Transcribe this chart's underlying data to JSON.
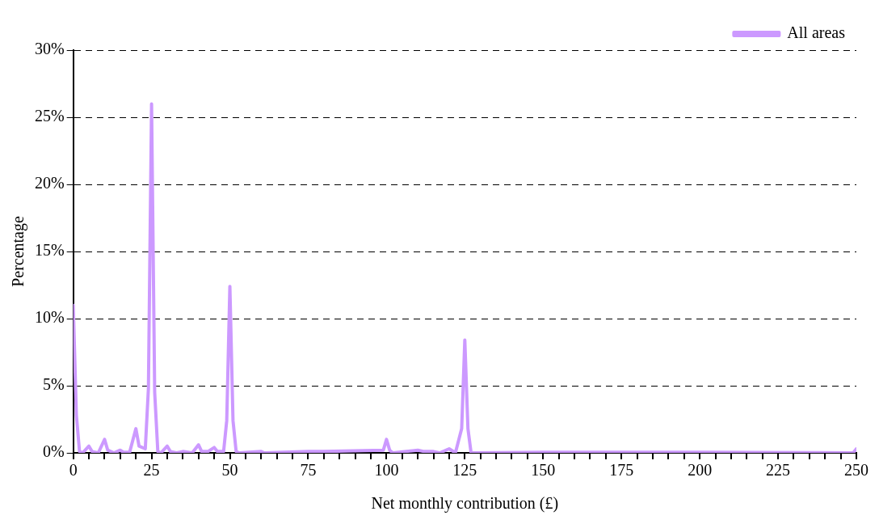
{
  "chart_data": {
    "type": "line",
    "xlabel": "Net monthly contribution (£)",
    "ylabel": "Percentage",
    "series": [
      {
        "name": "All areas",
        "color": "#cc99ff",
        "x": [
          0,
          1,
          2,
          3,
          5,
          6,
          8,
          10,
          11,
          13,
          15,
          16,
          18,
          20,
          21,
          23,
          24,
          25,
          26,
          27,
          28,
          30,
          31,
          33,
          35,
          38,
          40,
          41,
          43,
          45,
          46,
          48,
          49,
          50,
          51,
          52,
          53,
          60,
          61,
          75,
          80,
          99,
          100,
          101,
          102,
          110,
          112,
          115,
          117,
          120,
          122,
          124,
          125,
          126,
          127,
          150,
          200,
          249,
          250
        ],
        "values": [
          11,
          2.8,
          0.1,
          0,
          0.5,
          0.1,
          0,
          1,
          0.2,
          0,
          0.2,
          0.05,
          0.05,
          1.8,
          0.5,
          0.3,
          4.8,
          26,
          4.5,
          0.1,
          0,
          0.5,
          0.1,
          0,
          0.1,
          0,
          0.6,
          0.1,
          0.1,
          0.4,
          0.1,
          0.1,
          2.4,
          12.4,
          2.4,
          0.1,
          0,
          0.1,
          0,
          0.1,
          0.1,
          0.2,
          1,
          0.2,
          0,
          0.2,
          0.1,
          0.1,
          0,
          0.3,
          0,
          1.8,
          8.4,
          1.8,
          0,
          0.05,
          0.05,
          0,
          0.3
        ]
      }
    ],
    "xlim": [
      0,
      250
    ],
    "xticks": [
      0,
      {
        "value": 5,
        "label": null
      },
      {
        "value": 10,
        "label": null
      },
      {
        "value": 15,
        "label": null
      },
      {
        "value": 20,
        "label": null
      },
      25,
      {
        "value": 30,
        "label": null
      },
      {
        "value": 35,
        "label": null
      },
      {
        "value": 40,
        "label": null
      },
      {
        "value": 45,
        "label": null
      },
      50,
      {
        "value": 55,
        "label": null
      },
      {
        "value": 60,
        "label": null
      },
      {
        "value": 65,
        "label": null
      },
      {
        "value": 70,
        "label": null
      },
      75,
      {
        "value": 80,
        "label": null
      },
      {
        "value": 85,
        "label": null
      },
      {
        "value": 90,
        "label": null
      },
      {
        "value": 95,
        "label": null
      },
      100,
      {
        "value": 105,
        "label": null
      },
      {
        "value": 110,
        "label": null
      },
      {
        "value": 115,
        "label": null
      },
      {
        "value": 120,
        "label": null
      },
      125,
      {
        "value": 130,
        "label": null
      },
      {
        "value": 135,
        "label": null
      },
      {
        "value": 140,
        "label": null
      },
      {
        "value": 145,
        "label": null
      },
      150,
      {
        "value": 155,
        "label": null
      },
      {
        "value": 160,
        "label": null
      },
      {
        "value": 165,
        "label": null
      },
      {
        "value": 170,
        "label": null
      },
      175,
      {
        "value": 180,
        "label": null
      },
      {
        "value": 185,
        "label": null
      },
      {
        "value": 190,
        "label": null
      },
      {
        "value": 195,
        "label": null
      },
      200,
      {
        "value": 205,
        "label": null
      },
      {
        "value": 210,
        "label": null
      },
      {
        "value": 215,
        "label": null
      },
      {
        "value": 220,
        "label": null
      },
      225,
      {
        "value": 230,
        "label": null
      },
      {
        "value": 235,
        "label": null
      },
      {
        "value": 240,
        "label": null
      },
      {
        "value": 245,
        "label": null
      },
      250
    ],
    "ylim": [
      0,
      30
    ],
    "yticks": [
      {
        "value": 0,
        "label": "0%"
      },
      {
        "value": 5,
        "label": "5%"
      },
      {
        "value": 10,
        "label": "10%"
      },
      {
        "value": 15,
        "label": "15%"
      },
      {
        "value": 20,
        "label": "20%"
      },
      {
        "value": 25,
        "label": "25%"
      },
      {
        "value": 30,
        "label": "30%"
      }
    ],
    "grid": "y",
    "legend": "top right",
    "marker": "none",
    "line_style": "solid"
  }
}
